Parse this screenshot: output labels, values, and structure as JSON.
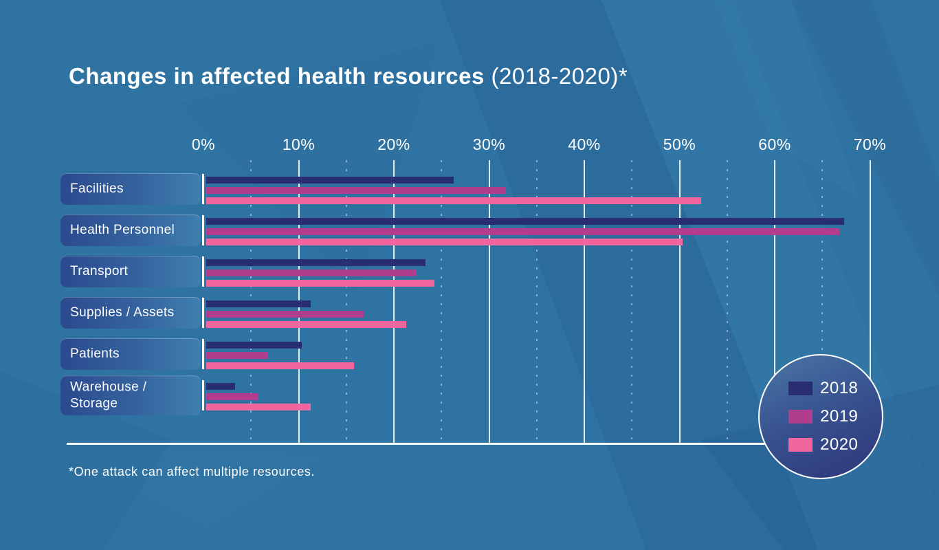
{
  "page": {
    "title_bold": "Changes in affected health resources",
    "title_light": " (2018-2020)*",
    "footnote": "*One attack can affect multiple resources."
  },
  "chart_data": {
    "type": "bar",
    "orientation": "horizontal",
    "title": "Changes in affected health resources (2018-2020)*",
    "footnote": "*One attack can affect multiple resources.",
    "unit": "percent",
    "categories": [
      "Facilities",
      "Health Personnel",
      "Transport",
      "Supplies / Assets",
      "Patients",
      "Warehouse / Storage"
    ],
    "series": [
      {
        "name": "2018",
        "color": "#282e71",
        "values": [
          26,
          67,
          23,
          11,
          10,
          3
        ]
      },
      {
        "name": "2019",
        "color": "#b03d8e",
        "values": [
          31.5,
          66.5,
          22,
          16.5,
          6.5,
          5.5
        ]
      },
      {
        "name": "2020",
        "color": "#f1679d",
        "values": [
          52,
          50,
          24,
          21,
          15.5,
          11
        ]
      }
    ],
    "x_axis": {
      "min": 0,
      "max": 70,
      "tick_labels": [
        "0%",
        "10%",
        "20%",
        "30%",
        "40%",
        "50%",
        "60%",
        "70%"
      ],
      "major_grid_step": 10,
      "minor_grid_step": 5,
      "grid": "solid white majors, dotted minors"
    },
    "legend": {
      "shape": "circle-bottom-right",
      "entries": [
        "2018",
        "2019",
        "2020"
      ]
    }
  },
  "colors": {
    "background": "#2f73a2",
    "text": "#ffffff",
    "row_pill_start": "#2b4a8e",
    "row_pill_end": "#3f7fb0",
    "legend_circle_start": "#4a77a6",
    "legend_circle_end": "#2e3679",
    "gridline": "#ffffff"
  }
}
